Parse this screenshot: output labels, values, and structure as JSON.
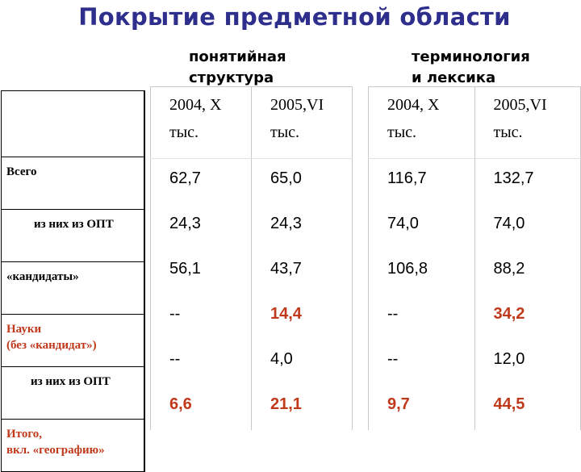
{
  "title": "Покрытие предметной области",
  "groups": {
    "g1": {
      "line1": "понятийная",
      "line2": "структура"
    },
    "g2": {
      "line1": "терминология",
      "line2": "и лексика"
    }
  },
  "rows": [
    {
      "label": "Всего",
      "red": false,
      "indent": 0
    },
    {
      "label": "из них из ОПТ",
      "red": false,
      "indent": 1
    },
    {
      "label": "«кандидаты»",
      "red": false,
      "indent": 0
    },
    {
      "label1": "Науки",
      "label2": "(без «кандидат»)",
      "red": true,
      "indent": 0
    },
    {
      "label": "из них из ОПТ",
      "red": false,
      "indent": 2
    },
    {
      "label1": "Итого,",
      "label2": "вкл. «географию»",
      "red": true,
      "indent": 0
    }
  ],
  "headers": {
    "c1": {
      "line1": "2004, X",
      "line2": "тыс."
    },
    "c2": {
      "line1": "2005,VI",
      "line2": "тыс."
    }
  },
  "values": [
    {
      "a": "62,7",
      "b": "65,0",
      "c": "116,7",
      "d": "132,7"
    },
    {
      "a": "24,3",
      "b": "24,3",
      "c": "74,0",
      "d": "74,0"
    },
    {
      "a": "56,1",
      "b": "43,7",
      "c": "106,8",
      "d": "88,2"
    },
    {
      "a": "--",
      "b": "14,4",
      "c": "--",
      "d": "34,2"
    },
    {
      "a": "--",
      "b": "4,0",
      "c": "--",
      "d": "12,0"
    },
    {
      "a": "6,6",
      "b": "21,1",
      "c": "9,7",
      "d": "44,5"
    }
  ],
  "colors": {
    "title": "#2e2e8c",
    "highlight": "#c0391b"
  }
}
